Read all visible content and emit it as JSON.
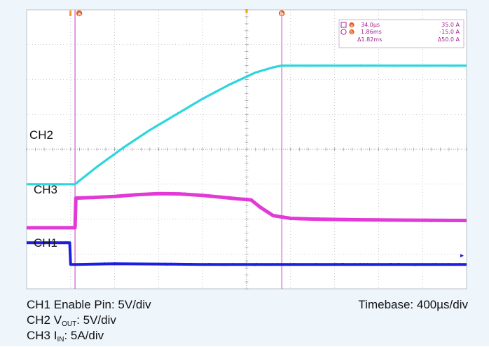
{
  "colors": {
    "frame_bg": "#eef5fb",
    "screen_bg": "#ffffff",
    "grid": "#9aa5ad",
    "ch1": "#1c1ee0",
    "ch2": "#2ed6dc",
    "ch3": "#e23ad6",
    "cursor": "#c84cc8",
    "cursor_tag": "#e8591e",
    "trigger_marker": "#f0a020"
  },
  "chart_data": {
    "type": "line",
    "grid": true,
    "x_divisions": 10,
    "y_divisions": 8,
    "xlim": [
      0,
      10
    ],
    "ylim": [
      0,
      8
    ],
    "channel_labels": [
      "CH2",
      "CH3",
      "CH1"
    ],
    "series": [
      {
        "name": "CH2",
        "color": "#2ed6dc",
        "x": [
          0,
          1.1,
          1.6,
          2.2,
          2.8,
          3.4,
          4.0,
          4.6,
          5.2,
          5.6,
          5.8,
          6.5,
          7.5,
          8.5,
          10
        ],
        "y": [
          0.0,
          0.0,
          0.5,
          1.05,
          1.55,
          2.0,
          2.45,
          2.85,
          3.2,
          3.35,
          3.4,
          3.4,
          3.4,
          3.4,
          3.4
        ]
      },
      {
        "name": "CH3",
        "color": "#e23ad6",
        "x": [
          0,
          1.1,
          1.12,
          1.5,
          2.0,
          2.5,
          3.0,
          3.5,
          4.0,
          4.5,
          4.8,
          5.1,
          5.3,
          5.6,
          6.0,
          6.5,
          7.5,
          8.5,
          10
        ],
        "y": [
          -1.25,
          -1.25,
          -0.4,
          -0.38,
          -0.35,
          -0.3,
          -0.27,
          -0.28,
          -0.32,
          -0.38,
          -0.42,
          -0.45,
          -0.65,
          -0.9,
          -0.98,
          -1.0,
          -1.02,
          -1.03,
          -1.04
        ]
      },
      {
        "name": "CH1",
        "color": "#1c1ee0",
        "x": [
          0,
          0.98,
          1.0,
          1.15,
          2.0,
          4.0,
          6.0,
          8.0,
          10
        ],
        "y": [
          -1.68,
          -1.68,
          -2.3,
          -2.3,
          -2.28,
          -2.3,
          -2.3,
          -2.3,
          -2.3
        ]
      }
    ],
    "cursors": [
      {
        "label": "a",
        "x": 1.1
      },
      {
        "label": "b",
        "x": 5.8
      }
    ],
    "measurements": [
      {
        "mark": "a",
        "time": "34.0µs",
        "value": "35.0 A"
      },
      {
        "mark": "b",
        "time": "1.86ms",
        "value": "-15.0 A"
      },
      {
        "mark": "delta",
        "time": "Δ1.82ms",
        "value": "Δ50.0 A"
      }
    ]
  },
  "captions": {
    "line1": "CH1 Enable Pin: 5V/div",
    "line2_prefix": "CH2 V",
    "line2_sub": "OUT",
    "line2_suffix": ": 5V/div",
    "line3_prefix": "CH3 I",
    "line3_sub": "IN",
    "line3_suffix": ": 5A/div",
    "timebase": "Timebase: 400µs/div"
  },
  "icons": [
    "square-marker-icon",
    "circle-marker-icon",
    "cursor-a-tag-icon",
    "cursor-b-tag-icon",
    "trigger-marker-icon",
    "channel-arrow-icon"
  ]
}
